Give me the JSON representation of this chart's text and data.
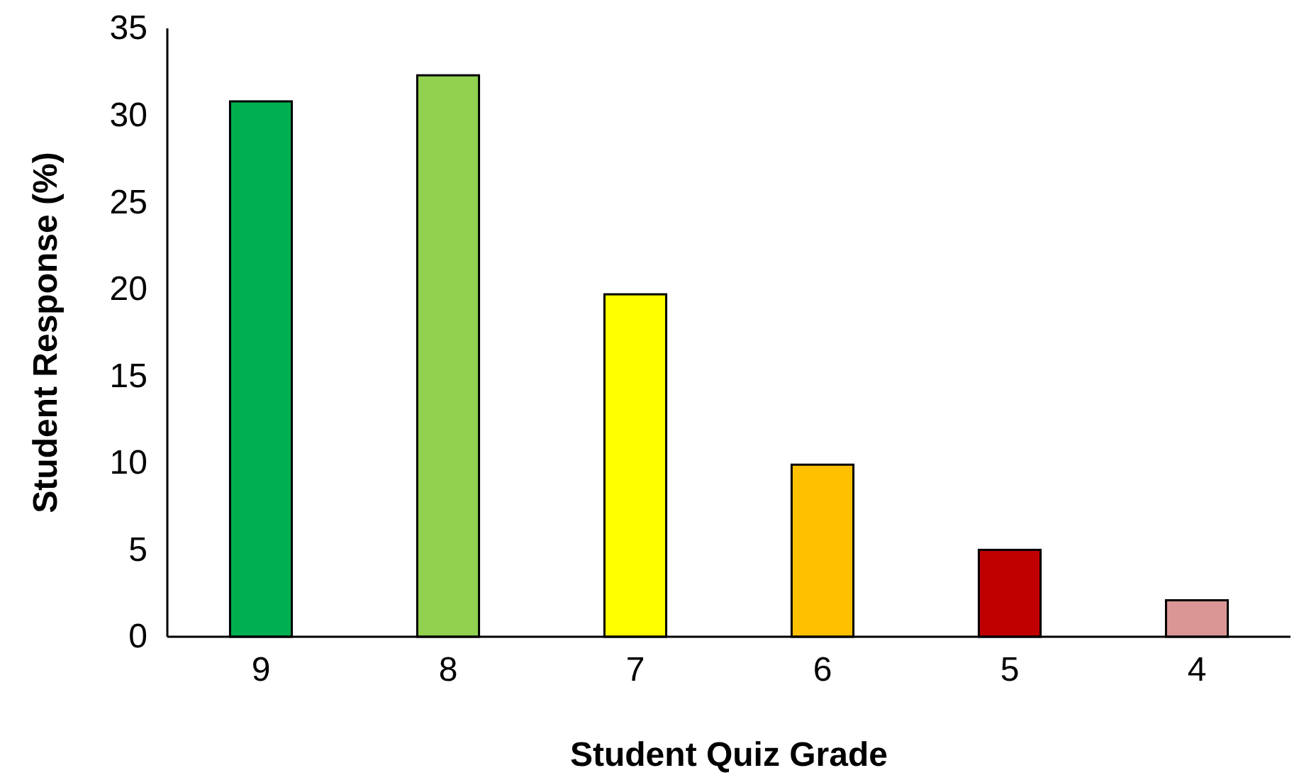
{
  "chart_data": {
    "type": "bar",
    "xlabel": "Student Quiz Grade",
    "ylabel": "Student Response (%)",
    "categories": [
      "9",
      "8",
      "7",
      "6",
      "5",
      "4"
    ],
    "values": [
      30.8,
      32.3,
      19.7,
      9.9,
      5.0,
      2.1
    ],
    "colors": [
      "#00b050",
      "#92d050",
      "#ffff00",
      "#ffc000",
      "#c00000",
      "#da9694"
    ],
    "ylim": [
      0,
      35
    ],
    "yticks": [
      0,
      5,
      10,
      15,
      20,
      25,
      30,
      35
    ],
    "grid": false
  }
}
